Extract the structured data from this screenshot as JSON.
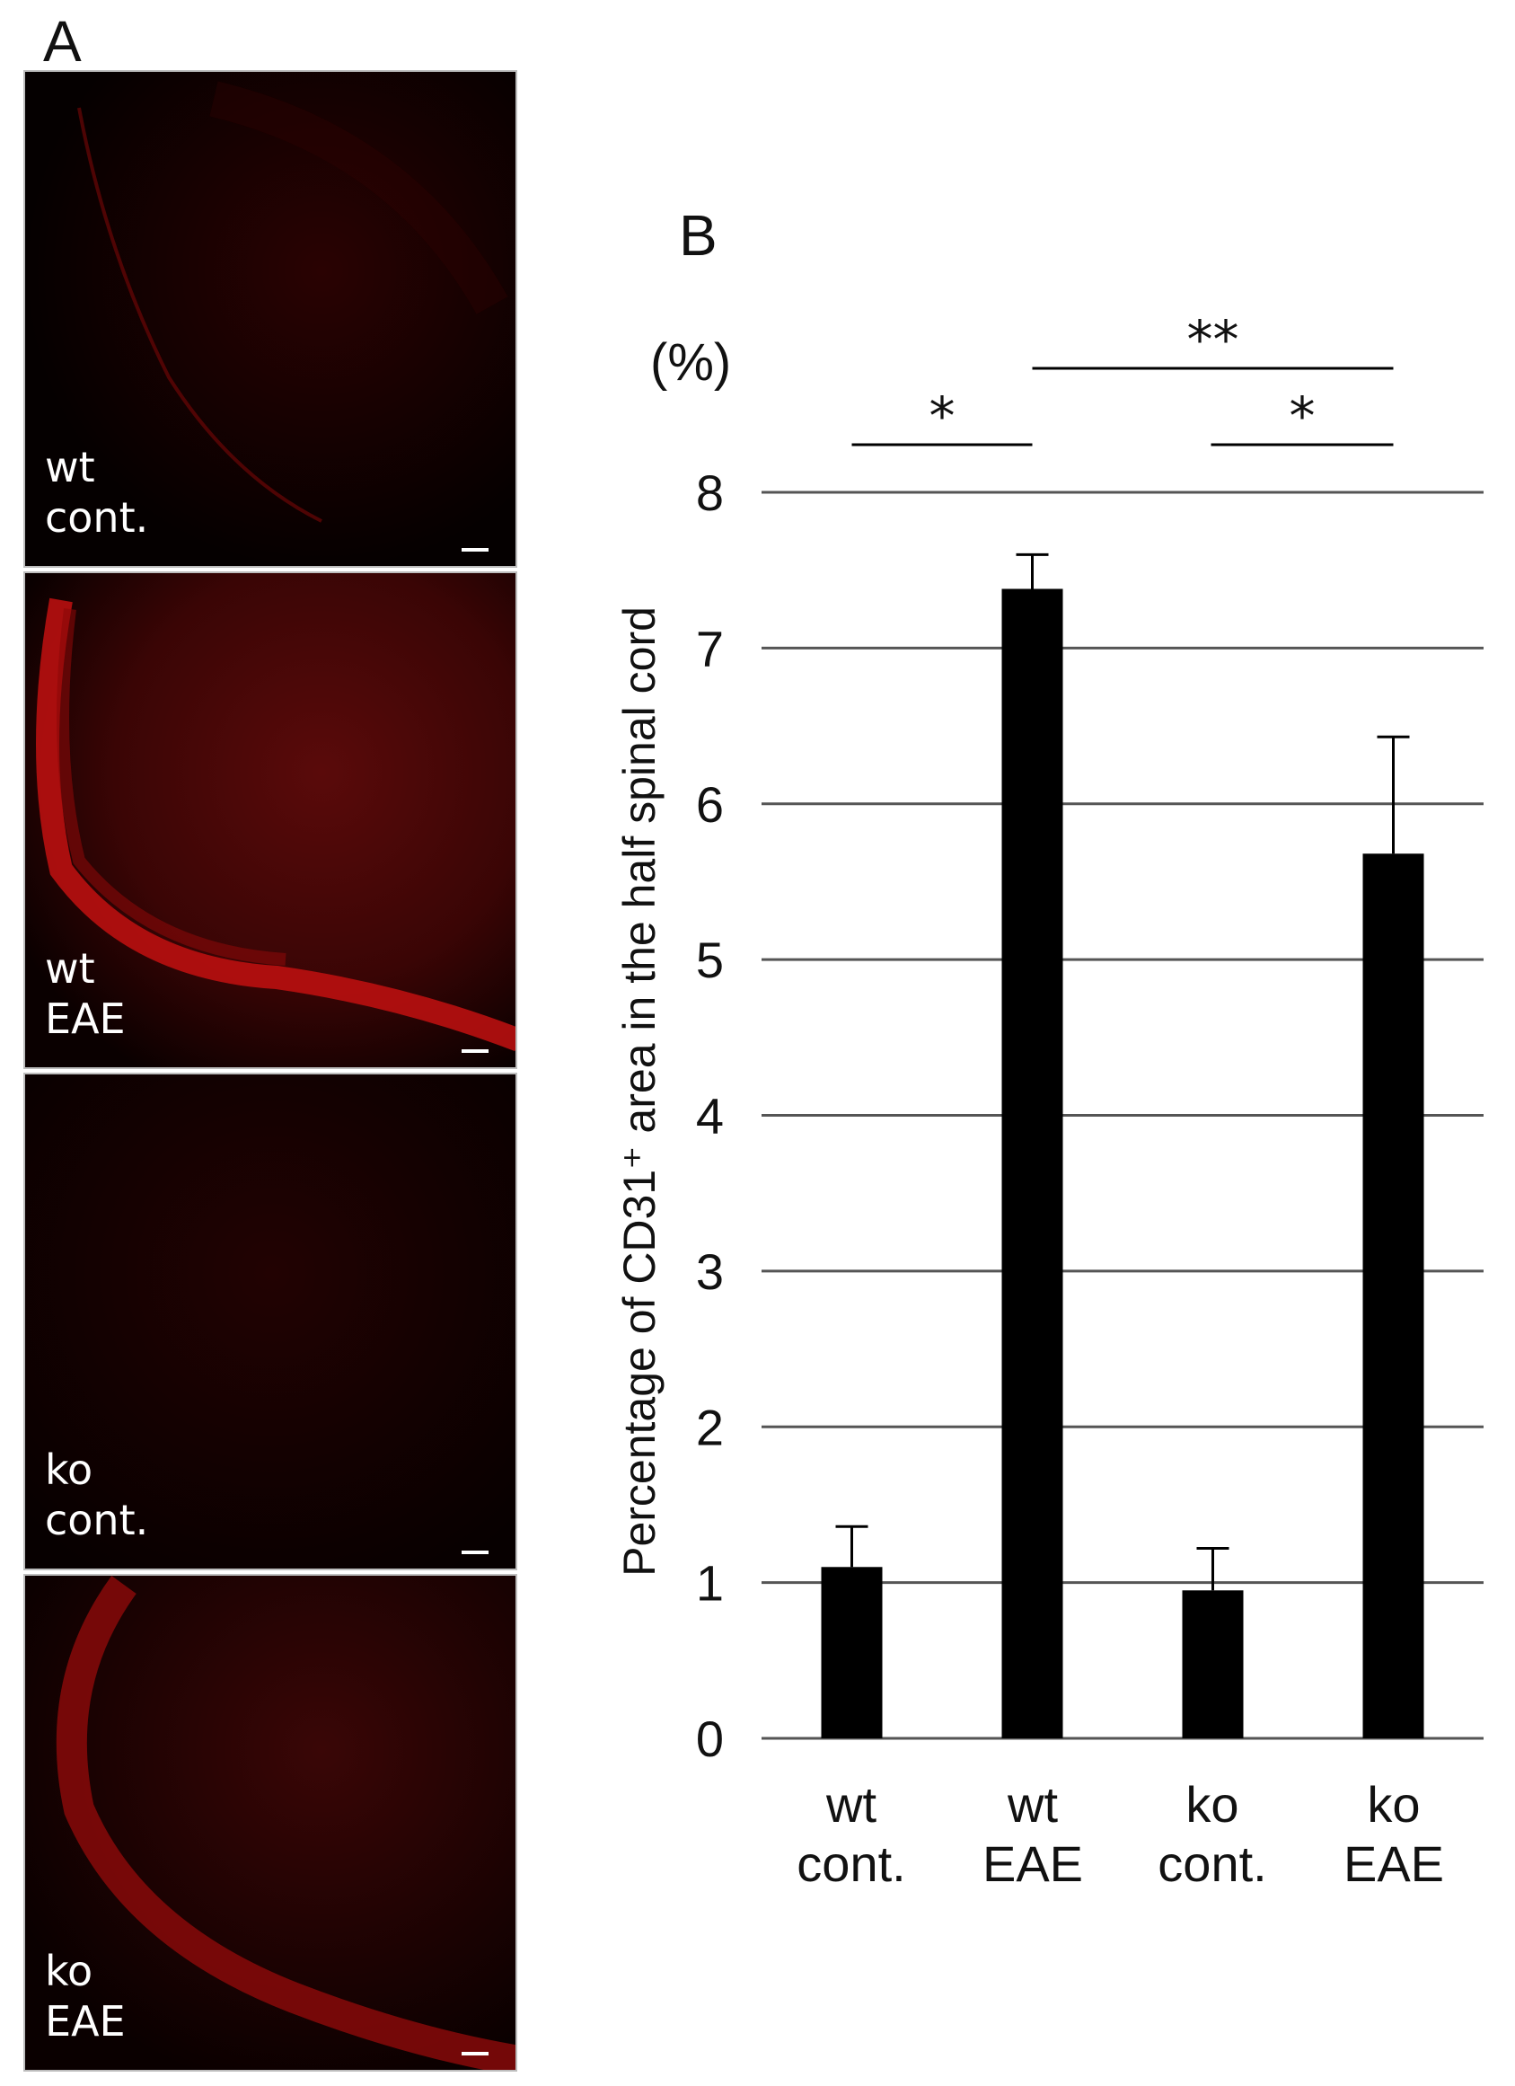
{
  "panel_a": {
    "letter": "A",
    "images": [
      {
        "line1": "wt",
        "line2": "cont."
      },
      {
        "line1": "wt",
        "line2": "EAE"
      },
      {
        "line1": "ko",
        "line2": "cont."
      },
      {
        "line1": "ko",
        "line2": "EAE"
      }
    ]
  },
  "panel_b": {
    "letter": "B"
  },
  "chart_data": {
    "type": "bar",
    "title": "",
    "ylabel": "Percentage of CD31⁺ area in the half spinal cord",
    "unit": "(%)",
    "categories": [
      {
        "line1": "wt",
        "line2": "cont."
      },
      {
        "line1": "wt",
        "line2": "EAE"
      },
      {
        "line1": "ko",
        "line2": "cont."
      },
      {
        "line1": "ko",
        "line2": "EAE"
      }
    ],
    "values": [
      1.1,
      7.38,
      0.95,
      5.68
    ],
    "errors": [
      0.26,
      0.22,
      0.27,
      0.75
    ],
    "ylim": [
      0,
      8
    ],
    "yticks": [
      "0",
      "1",
      "2",
      "3",
      "4",
      "5",
      "6",
      "7",
      "8"
    ],
    "grid": true,
    "bar_color": "#000000",
    "significance": [
      {
        "from": 0,
        "to": 1,
        "label": "*"
      },
      {
        "from": 1,
        "to": 3,
        "label": "**"
      },
      {
        "from": 2,
        "to": 3,
        "label": "*"
      }
    ]
  }
}
